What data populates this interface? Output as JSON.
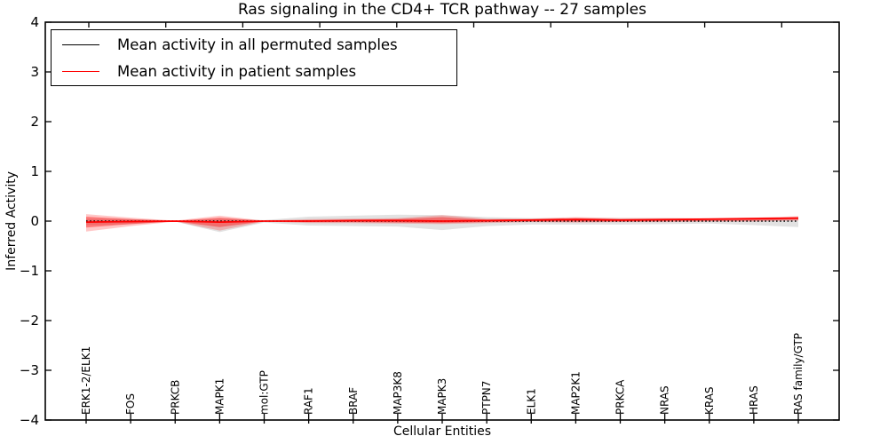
{
  "figure": {
    "background": "#ffffff"
  },
  "chart_data": {
    "type": "line",
    "title": "Ras signaling in the CD4+ TCR pathway -- 27 samples",
    "xlabel": "Cellular Entities",
    "ylabel": "Inferred Activity",
    "ylim": [
      -4,
      4
    ],
    "grid": false,
    "legend_position": "upper left",
    "yticks": [
      {
        "v": 4,
        "label": "4"
      },
      {
        "v": 3,
        "label": "3"
      },
      {
        "v": 2,
        "label": "2"
      },
      {
        "v": 1,
        "label": "1"
      },
      {
        "v": 0,
        "label": "0"
      },
      {
        "v": -1,
        "label": "−1"
      },
      {
        "v": -2,
        "label": "−2"
      },
      {
        "v": -3,
        "label": "−3"
      },
      {
        "v": -4,
        "label": "−4"
      }
    ],
    "categories": [
      "ERK1-2/ELK1",
      "FOS",
      "PRKCB",
      "MAPK1",
      "mol:GTP",
      "RAF1",
      "BRAF",
      "MAP3K8",
      "MAPK3",
      "PTPN7",
      "ELK1",
      "MAP2K1",
      "PRKCA",
      "NRAS",
      "KRAS",
      "HRAS",
      "RAS family/GTP"
    ],
    "series": [
      {
        "name": "Mean activity in all permuted samples",
        "color": "#000000",
        "style": "dotted",
        "width": 1.5,
        "values": [
          0,
          0,
          0,
          0,
          0,
          0,
          0,
          0,
          0,
          0,
          0,
          0,
          0,
          0,
          0,
          0,
          0
        ]
      },
      {
        "name": "Mean activity in patient samples",
        "color": "#ff0000",
        "style": "solid",
        "width": 1.8,
        "values": [
          -0.02,
          -0.01,
          0.0,
          -0.02,
          0.0,
          0.0,
          0.01,
          0.01,
          0.0,
          0.01,
          0.02,
          0.03,
          0.02,
          0.03,
          0.04,
          0.05,
          0.06
        ]
      }
    ],
    "bands": [
      {
        "name": "permuted-samples-range",
        "color": "rgba(125,125,125,0.22)",
        "upper": [
          0.05,
          0.04,
          0.01,
          0.05,
          0.02,
          0.09,
          0.11,
          0.13,
          0.12,
          0.08,
          0.06,
          0.06,
          0.06,
          0.06,
          0.05,
          0.06,
          0.05
        ],
        "lower": [
          -0.08,
          -0.06,
          -0.01,
          -0.22,
          -0.03,
          -0.09,
          -0.1,
          -0.11,
          -0.18,
          -0.1,
          -0.07,
          -0.07,
          -0.07,
          -0.06,
          -0.05,
          -0.08,
          -0.12
        ]
      },
      {
        "name": "patient-samples-range-outer",
        "color": "rgba(255,0,0,0.22)",
        "upper": [
          0.14,
          0.07,
          0.01,
          0.11,
          0.01,
          0.04,
          0.05,
          0.06,
          0.12,
          0.05,
          0.05,
          0.08,
          0.06,
          0.06,
          0.06,
          0.07,
          0.1
        ],
        "lower": [
          -0.21,
          -0.1,
          -0.01,
          -0.19,
          -0.01,
          -0.04,
          -0.04,
          -0.05,
          -0.06,
          -0.04,
          -0.02,
          -0.03,
          -0.02,
          -0.02,
          -0.01,
          -0.01,
          0.01
        ]
      },
      {
        "name": "patient-samples-range-inner",
        "color": "rgba(255,0,0,0.38)",
        "upper": [
          0.09,
          0.04,
          0.005,
          0.07,
          0.005,
          0.02,
          0.03,
          0.04,
          0.08,
          0.03,
          0.04,
          0.06,
          0.04,
          0.04,
          0.05,
          0.06,
          0.08
        ],
        "lower": [
          -0.13,
          -0.06,
          -0.005,
          -0.12,
          -0.005,
          -0.02,
          -0.02,
          -0.03,
          -0.04,
          -0.02,
          -0.01,
          -0.01,
          -0.01,
          0.0,
          0.0,
          0.01,
          0.03
        ]
      }
    ]
  }
}
